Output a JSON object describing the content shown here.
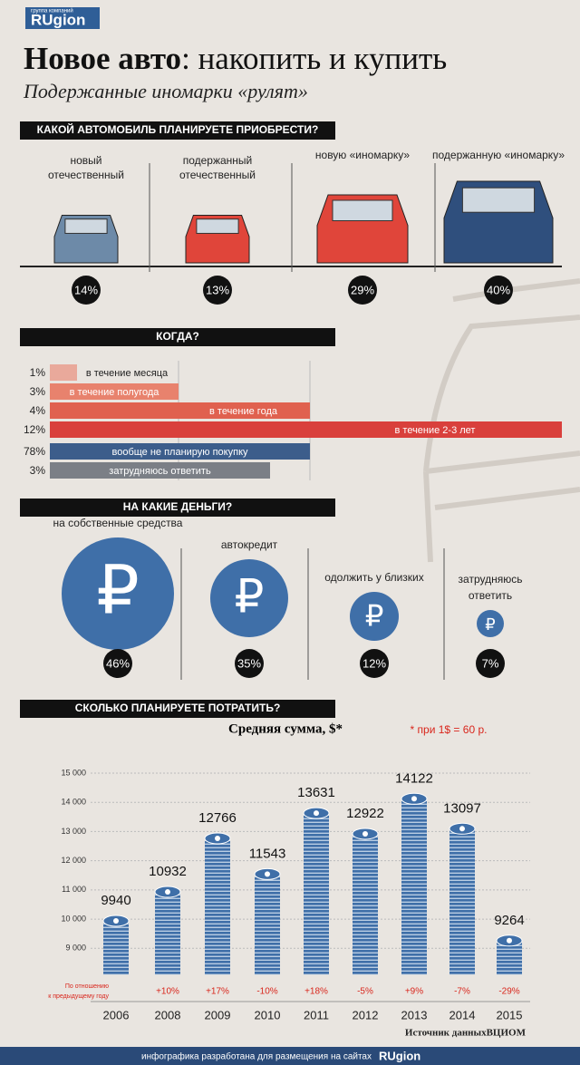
{
  "header": {
    "brand": "RUgion",
    "brand_tag": "группа компаний",
    "title_bold": "Новое авто",
    "title_rest": ": накопить и купить",
    "subtitle": "Подержанные иномарки «рулят»"
  },
  "car_section": {
    "title": "КАКОЙ АВТОМОБИЛЬ ПЛАНИРУЕТЕ ПРИОБРЕСТИ?",
    "items": [
      {
        "label": [
          "новый",
          "отечественный"
        ],
        "share": "14%"
      },
      {
        "label": [
          "подержанный",
          "отечественный"
        ],
        "share": "13%"
      },
      {
        "label": [
          "новую «иномарку»"
        ],
        "share": "29%"
      },
      {
        "label": [
          "подержанную «иномарку»"
        ],
        "share": "40%"
      }
    ]
  },
  "when_section": {
    "title": "КОГДА?",
    "rows": [
      {
        "share": "1%",
        "label": "в течение месяца"
      },
      {
        "share": "3%",
        "label": "в течение полугода"
      },
      {
        "share": "4%",
        "label": "в течение года"
      },
      {
        "share": "12%",
        "label": "в течение 2-3 лет"
      },
      {
        "share": "78%",
        "label": "вообще не планирую покупку"
      },
      {
        "share": "3%",
        "label": "затрудняюсь ответить"
      }
    ]
  },
  "money_section": {
    "title": "НА КАКИЕ ДЕНЬГИ?",
    "symbol": "₽",
    "items": [
      {
        "label": [
          "на собственные средства"
        ],
        "share": "46%"
      },
      {
        "label": [
          "автокредит"
        ],
        "share": "35%"
      },
      {
        "label": [
          "одолжить у близких"
        ],
        "share": "12%"
      },
      {
        "label": [
          "затрудняюсь",
          "ответить"
        ],
        "share": "7%"
      }
    ]
  },
  "spend_section": {
    "title": "СКОЛЬКО ПЛАНИРУЕТЕ ПОТРАТИТЬ?"
  },
  "chart_data": {
    "type": "bar",
    "title": "Средняя сумма, $*",
    "note": "* при 1$ = 60 р.",
    "categories": [
      "2006",
      "2008",
      "2009",
      "2010",
      "2011",
      "2012",
      "2013",
      "2014",
      "2015"
    ],
    "values": [
      9940,
      10932,
      12766,
      11543,
      13631,
      12922,
      14122,
      13097,
      9264
    ],
    "color": "#3f6fa8",
    "ylim": [
      8100,
      15000
    ],
    "yticks": [
      {
        "value": 9000,
        "label": "9 000"
      },
      {
        "value": 10000,
        "label": "10 000"
      },
      {
        "value": 11000,
        "label": "11 000"
      },
      {
        "value": 12000,
        "label": "12 000"
      },
      {
        "value": 13000,
        "label": "13 000"
      },
      {
        "value": 14000,
        "label": "14 000"
      },
      {
        "value": 15000,
        "label": "15 000"
      }
    ],
    "grid": true,
    "changes_caption": [
      "По отношению",
      "к предыдущему году"
    ],
    "changes": [
      null,
      "+10%",
      "+17%",
      "-10%",
      "+18%",
      "-5%",
      "+9%",
      "-7%",
      "-29%"
    ],
    "source": "Источник данныхВЦИОМ"
  },
  "footer": {
    "text": "инфографика разработана для размещения на сайтах",
    "brand": "RUgion"
  }
}
